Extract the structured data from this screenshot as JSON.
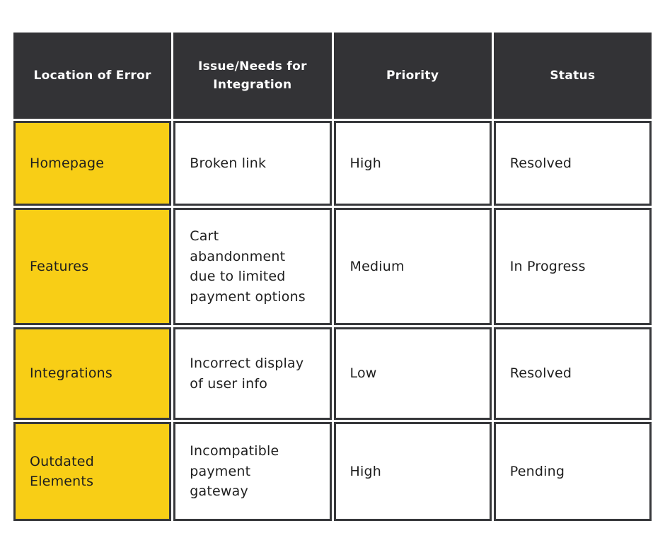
{
  "colors": {
    "page_bg": "#ffffff",
    "header_bg": "#333336",
    "header_text": "#ffffff",
    "row_label_bg": "#f8ce16",
    "cell_border": "#37383b",
    "body_text": "#1e1e1e"
  },
  "display": {
    "columns": [
      "Location of Error",
      "Issue/Needs for\nIntegration",
      "Priority",
      "Status"
    ],
    "rows": [
      {
        "location": "Homepage",
        "issue": "Broken link",
        "priority": "High",
        "status": "Resolved"
      },
      {
        "location": "Features",
        "issue": "Cart\nabandonment\ndue to limited\npayment options",
        "priority": "Medium",
        "status": "In Progress"
      },
      {
        "location": "Integrations",
        "issue": "Incorrect display\nof user info",
        "priority": "Low",
        "status": "Resolved"
      },
      {
        "location": "Outdated\nElements",
        "issue": "Incompatible\npayment\ngateway",
        "priority": "High",
        "status": "Pending"
      }
    ]
  },
  "chart_data": {
    "type": "table",
    "title": "",
    "columns": [
      "Location of Error",
      "Issue/Needs for Integration",
      "Priority",
      "Status"
    ],
    "rows": [
      [
        "Homepage",
        "Broken link",
        "High",
        "Resolved"
      ],
      [
        "Features",
        "Cart abandonment due to limited payment options",
        "Medium",
        "In Progress"
      ],
      [
        "Integrations",
        "Incorrect display of user info",
        "Low",
        "Resolved"
      ],
      [
        "Outdated Elements",
        "Incompatible payment gateway",
        "High",
        "Pending"
      ]
    ],
    "layout_hints": {
      "header_style": "dark bar, white bold centered text",
      "first_column_style": "yellow filled cells with dark borders",
      "body_style": "white cells, dark 3px borders, left-aligned text"
    }
  }
}
